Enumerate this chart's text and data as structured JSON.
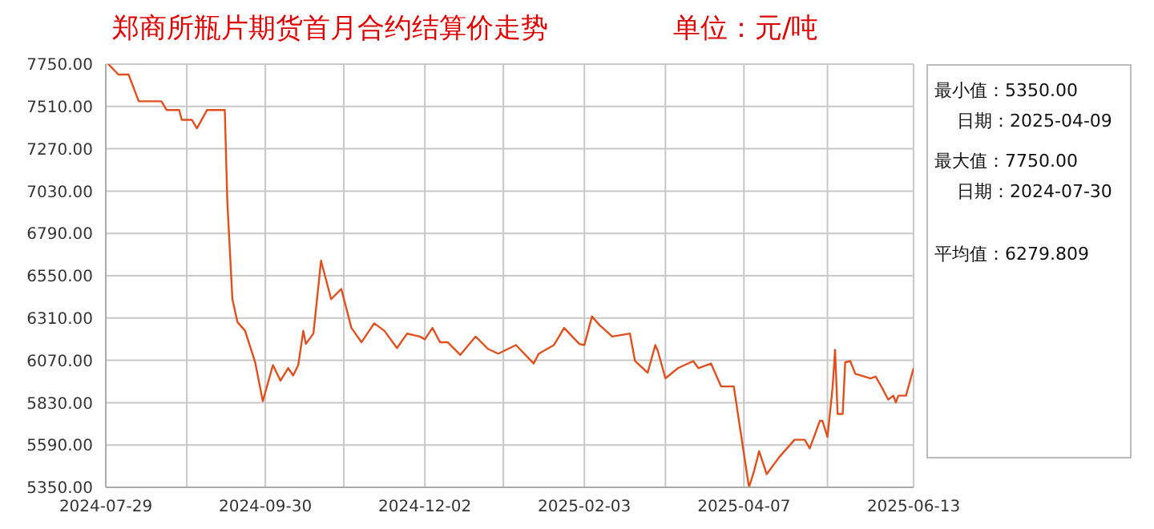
{
  "chart_data": {
    "type": "line",
    "title": "郑商所瓶片期货首月合约结算价走势",
    "subtitle": "单位：元/吨",
    "annotations": [
      "最小值：5350.00",
      "日期：2025-04-09",
      "最大值：7750.00",
      "日期：2024-07-30",
      "平均值：6279.809"
    ],
    "x": [
      "2024-07-30",
      "2024-08-03",
      "2024-08-07",
      "2024-08-11",
      "2024-08-20",
      "2024-08-22",
      "2024-08-27",
      "2024-08-28",
      "2024-09-01",
      "2024-09-03",
      "2024-09-07",
      "2024-09-14",
      "2024-09-15",
      "2024-09-17",
      "2024-09-19",
      "2024-09-22",
      "2024-09-26",
      "2024-09-29",
      "2024-10-03",
      "2024-10-06",
      "2024-10-09",
      "2024-10-11",
      "2024-10-13",
      "2024-10-15",
      "2024-10-16",
      "2024-10-19",
      "2024-10-22",
      "2024-10-26",
      "2024-10-30",
      "2024-11-03",
      "2024-11-07",
      "2024-11-12",
      "2024-11-16",
      "2024-11-21",
      "2024-11-25",
      "2024-11-30",
      "2024-12-02",
      "2024-12-05",
      "2024-12-08",
      "2024-12-11",
      "2024-12-16",
      "2024-12-22",
      "2024-12-27",
      "2024-12-31",
      "2025-01-07",
      "2025-01-14",
      "2025-01-16",
      "2025-01-22",
      "2025-01-26",
      "2025-02-01",
      "2025-02-03",
      "2025-02-06",
      "2025-02-09",
      "2025-02-14",
      "2025-02-21",
      "2025-02-23",
      "2025-02-28",
      "2025-03-03",
      "2025-03-04",
      "2025-03-07",
      "2025-03-12",
      "2025-03-18",
      "2025-03-20",
      "2025-03-25",
      "2025-03-29",
      "2025-04-03",
      "2025-04-09",
      "2025-04-11",
      "2025-04-13",
      "2025-04-16",
      "2025-04-21",
      "2025-04-27",
      "2025-05-01",
      "2025-05-03",
      "2025-05-07",
      "2025-05-08",
      "2025-05-10",
      "2025-05-12",
      "2025-05-13",
      "2025-05-14",
      "2025-05-16",
      "2025-05-17",
      "2025-05-19",
      "2025-05-21",
      "2025-05-27",
      "2025-05-29",
      "2025-05-31",
      "2025-06-03",
      "2025-06-05",
      "2025-06-06",
      "2025-06-07",
      "2025-06-10",
      "2025-06-13"
    ],
    "series": [
      {
        "color": "#e0501e",
        "values": [
          7750,
          7691,
          7691,
          7539,
          7539,
          7490,
          7490,
          7434,
          7434,
          7386,
          7490,
          7490,
          6970,
          6417,
          6287,
          6238,
          6059,
          5838,
          6043,
          5955,
          6026,
          5984,
          6043,
          6238,
          6163,
          6222,
          6635,
          6417,
          6475,
          6254,
          6173,
          6280,
          6238,
          6140,
          6222,
          6205,
          6189,
          6254,
          6173,
          6173,
          6101,
          6205,
          6134,
          6108,
          6157,
          6052,
          6108,
          6157,
          6254,
          6163,
          6157,
          6319,
          6270,
          6205,
          6222,
          6066,
          6000,
          6157,
          6124,
          5968,
          6026,
          6066,
          6026,
          6052,
          5922,
          5922,
          5350,
          5441,
          5555,
          5425,
          5522,
          5620,
          5620,
          5571,
          5727,
          5727,
          5636,
          5913,
          6130,
          5766,
          5766,
          6059,
          6066,
          5994,
          5968,
          5978,
          5929,
          5848,
          5870,
          5831,
          5870,
          5870,
          6026
        ]
      }
    ],
    "xlim": [
      "2024-07-29",
      "2025-06-13"
    ],
    "xticks": [
      {
        "value": "2024-07-29",
        "label": "2024-07-29"
      },
      {
        "value": "2024-08-30",
        "label": null
      },
      {
        "value": "2024-09-30",
        "label": "2024-09-30"
      },
      {
        "value": "2024-10-31",
        "label": null
      },
      {
        "value": "2024-12-02",
        "label": "2024-12-02"
      },
      {
        "value": "2025-01-02",
        "label": null
      },
      {
        "value": "2025-02-03",
        "label": "2025-02-03"
      },
      {
        "value": "2025-03-07",
        "label": null
      },
      {
        "value": "2025-04-07",
        "label": "2025-04-07"
      },
      {
        "value": "2025-05-10",
        "label": null
      },
      {
        "value": "2025-06-13",
        "label": "2025-06-13"
      }
    ],
    "ylim": [
      5350,
      7750
    ],
    "yticks": [
      {
        "value": 5350,
        "label": "5350.00"
      },
      {
        "value": 5590,
        "label": "5590.00"
      },
      {
        "value": 5830,
        "label": "5830.00"
      },
      {
        "value": 6070,
        "label": "6070.00"
      },
      {
        "value": 6310,
        "label": "6310.00"
      },
      {
        "value": 6550,
        "label": "6550.00"
      },
      {
        "value": 6790,
        "label": "6790.00"
      },
      {
        "value": 7030,
        "label": "7030.00"
      },
      {
        "value": 7270,
        "label": "7270.00"
      },
      {
        "value": 7510,
        "label": "7510.00"
      },
      {
        "value": 7750,
        "label": "7750.00"
      }
    ],
    "grid": true
  }
}
